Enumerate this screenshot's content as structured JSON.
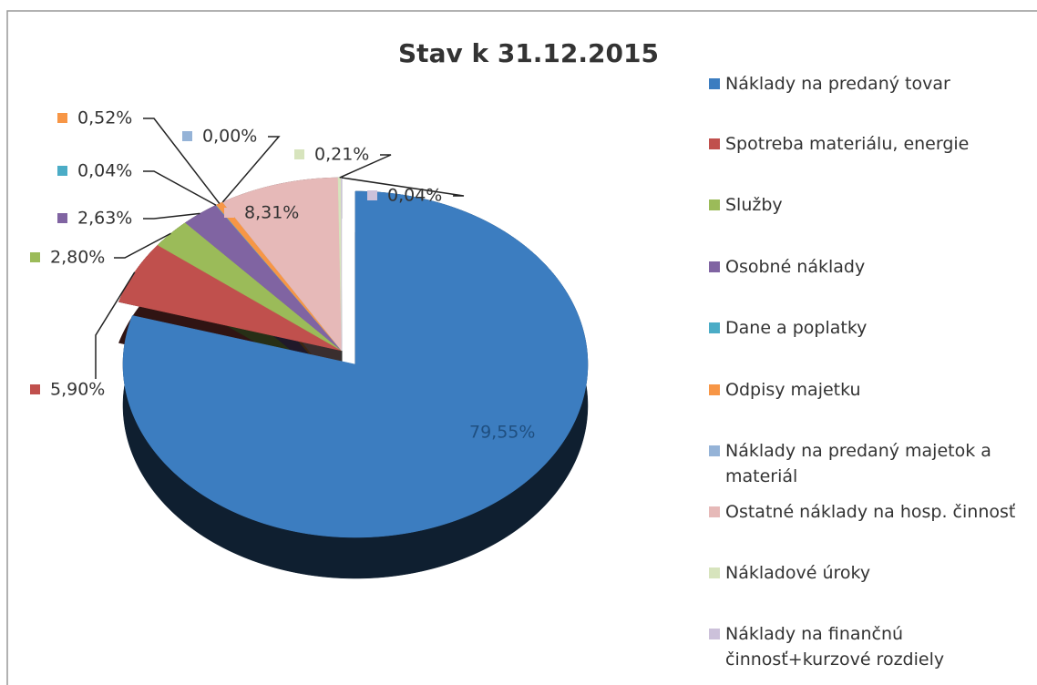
{
  "chart_data": {
    "type": "pie",
    "title": "Stav k 31.12.2015",
    "categories": [
      "Náklady na predaný tovar",
      "Spotreba materiálu, energie",
      "Služby",
      "Osobné náklady",
      "Dane a poplatky",
      "Odpisy majetku",
      "Náklady na predaný majetok a materiál",
      "Ostatné náklady na hosp. činnosť",
      "Nákladové úroky",
      "Náklady na finančnú činnosť+kurzové rozdiely"
    ],
    "values": [
      79.55,
      5.9,
      2.8,
      2.63,
      0.04,
      0.52,
      0.0,
      8.31,
      0.21,
      0.04
    ],
    "value_labels": [
      "79,55%",
      "5,90%",
      "2,80%",
      "2,63%",
      "0,04%",
      "0,52%",
      "0,00%",
      "8,31%",
      "0,21%",
      "0,04%"
    ],
    "colors": [
      "#3c7dc0",
      "#c0504d",
      "#9bbb59",
      "#8064a2",
      "#4bacc6",
      "#f79646",
      "#95b3d7",
      "#e6b9b8",
      "#d7e4bd",
      "#ccc1da"
    ],
    "legend": "right"
  }
}
